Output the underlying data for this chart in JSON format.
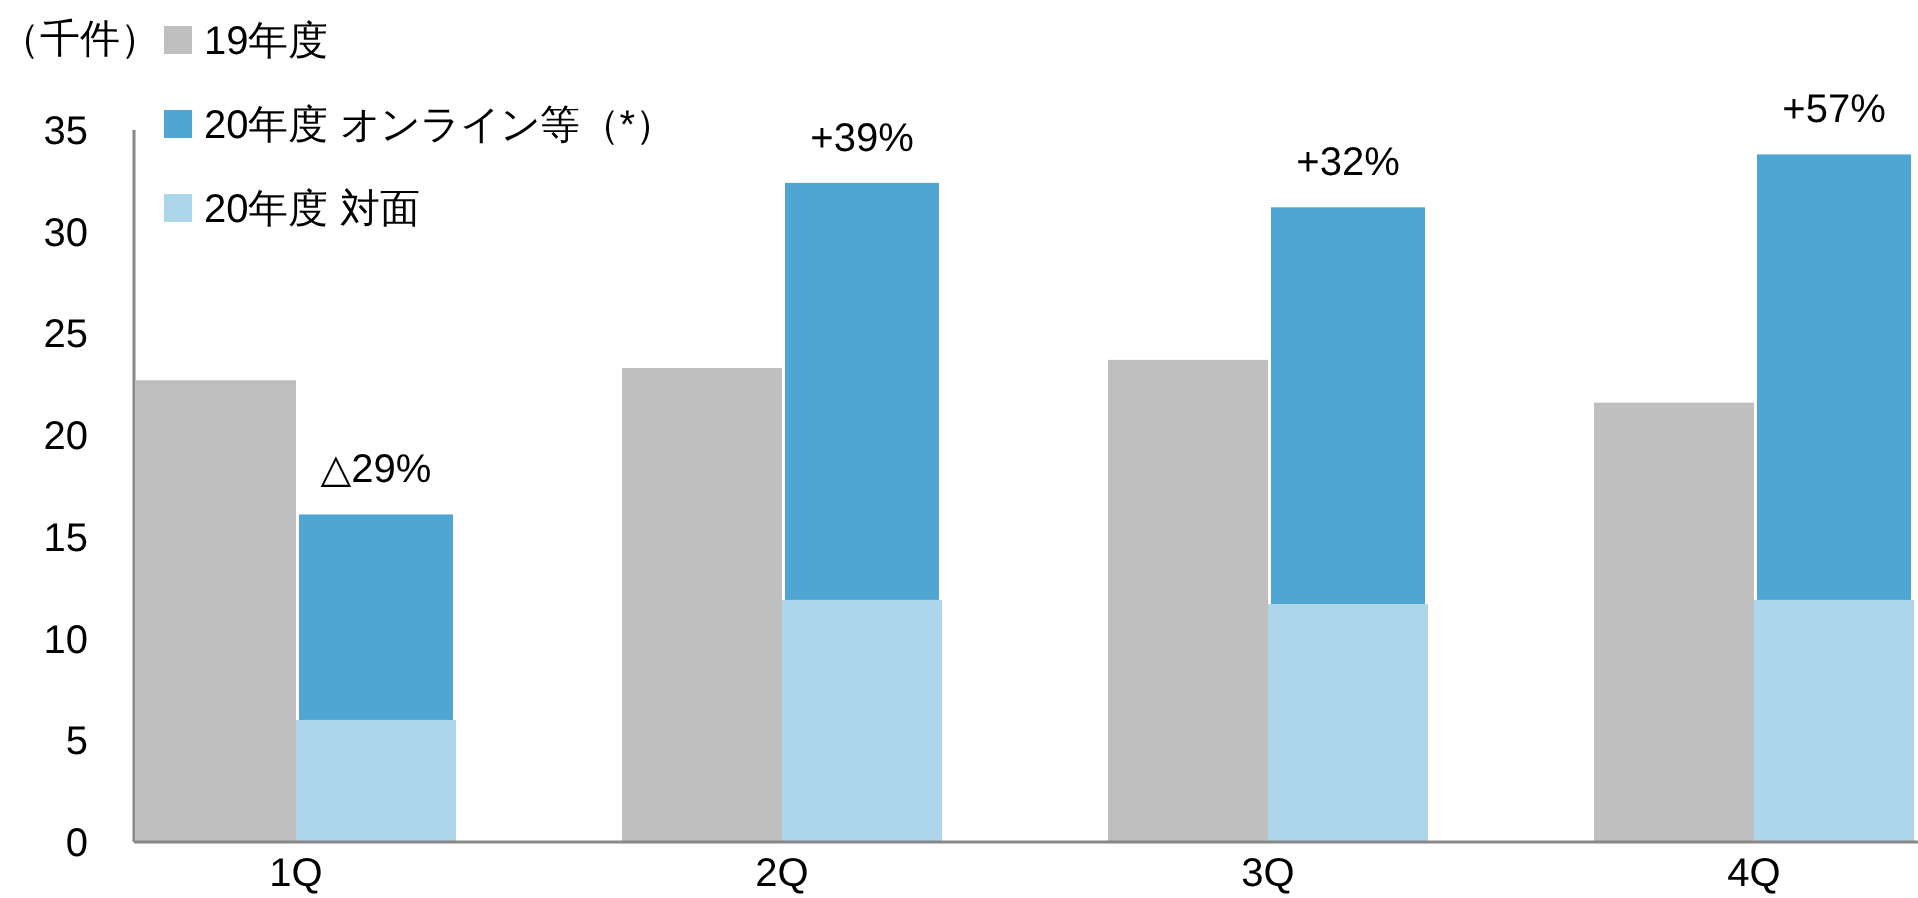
{
  "chart_data": {
    "type": "bar",
    "ylabel": "（千件）",
    "categories": [
      "1Q",
      "2Q",
      "3Q",
      "4Q"
    ],
    "series": [
      {
        "name": "19年度",
        "color": "#bfbfbf",
        "values": [
          22.7,
          23.3,
          23.7,
          21.6
        ]
      },
      {
        "name": "20年度 対面",
        "color": "#aed6ea",
        "values": [
          6.0,
          11.9,
          11.7,
          11.9
        ]
      },
      {
        "name": "20年度 オンライン等（*）",
        "color": "#4fa6d3",
        "values": [
          10.1,
          20.5,
          19.5,
          21.9
        ],
        "base": [
          6.0,
          11.9,
          11.7,
          11.9
        ]
      }
    ],
    "ylim": [
      0,
      35
    ],
    "yticks": [
      0,
      5,
      10,
      15,
      20,
      25,
      30,
      35
    ],
    "legend": "top left",
    "grid": false,
    "annotations": [
      {
        "text": "△29%",
        "x": "1Q",
        "y": 16.1
      },
      {
        "text": "+39%",
        "x": "2Q",
        "y": 32.4
      },
      {
        "text": "+32%",
        "x": "3Q",
        "y": 31.2
      },
      {
        "text": "+57%",
        "x": "4Q",
        "y": 33.8
      }
    ]
  }
}
